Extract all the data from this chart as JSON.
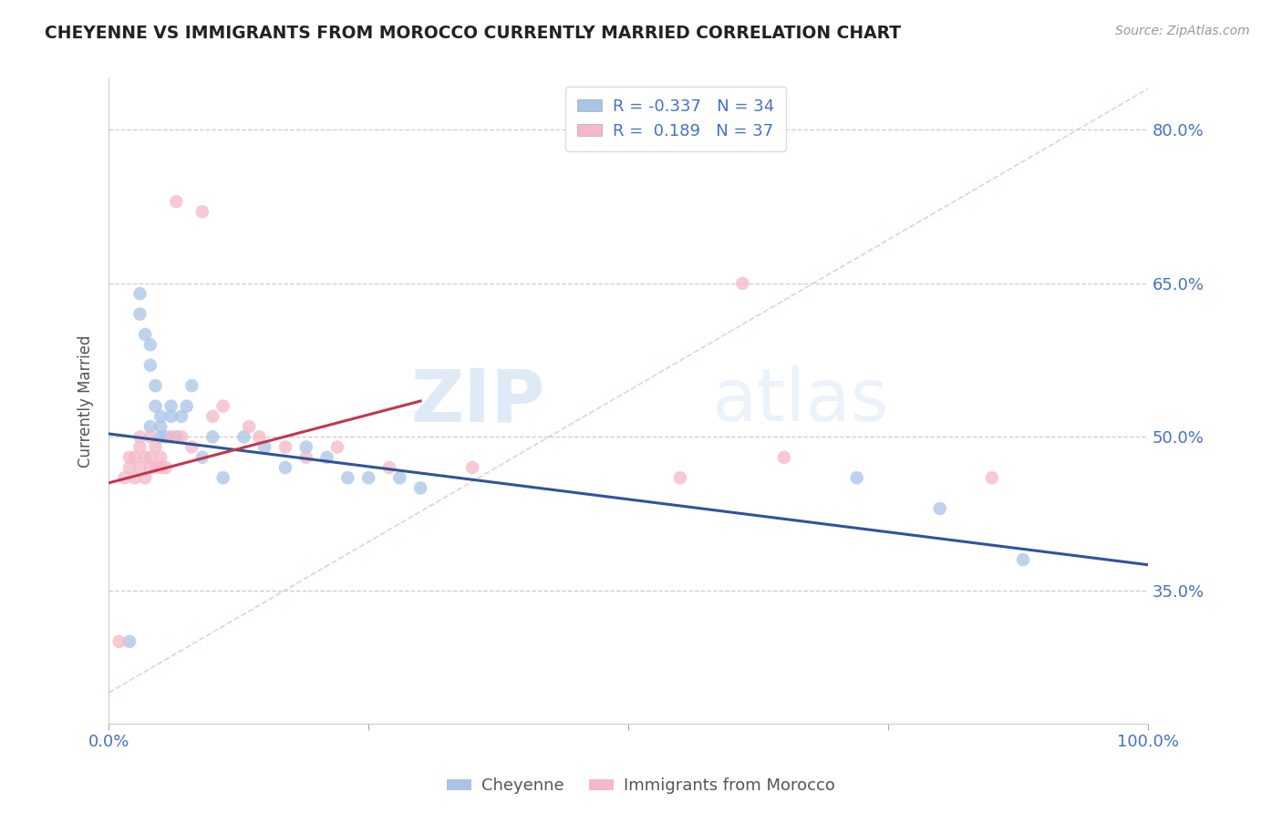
{
  "title": "CHEYENNE VS IMMIGRANTS FROM MOROCCO CURRENTLY MARRIED CORRELATION CHART",
  "source_text": "Source: ZipAtlas.com",
  "ylabel": "Currently Married",
  "y_tick_values": [
    0.8,
    0.65,
    0.5,
    0.35
  ],
  "xlim": [
    0.0,
    1.0
  ],
  "ylim": [
    0.22,
    0.85
  ],
  "legend_blue_label": "R = -0.337   N = 34",
  "legend_pink_label": "R =  0.189   N = 37",
  "blue_color": "#a8c4e8",
  "pink_color": "#f5b8c8",
  "blue_line_color": "#2f5597",
  "pink_line_color": "#c0384e",
  "watermark_zip": "ZIP",
  "watermark_atlas": "atlas",
  "cheyenne_x": [
    0.02,
    0.03,
    0.03,
    0.035,
    0.04,
    0.04,
    0.04,
    0.045,
    0.045,
    0.05,
    0.05,
    0.05,
    0.055,
    0.06,
    0.06,
    0.065,
    0.07,
    0.075,
    0.08,
    0.09,
    0.1,
    0.11,
    0.13,
    0.15,
    0.17,
    0.19,
    0.21,
    0.23,
    0.25,
    0.28,
    0.3,
    0.72,
    0.8,
    0.88
  ],
  "cheyenne_y": [
    0.3,
    0.62,
    0.64,
    0.6,
    0.57,
    0.59,
    0.51,
    0.53,
    0.55,
    0.5,
    0.51,
    0.52,
    0.5,
    0.52,
    0.53,
    0.5,
    0.52,
    0.53,
    0.55,
    0.48,
    0.5,
    0.46,
    0.5,
    0.49,
    0.47,
    0.49,
    0.48,
    0.46,
    0.46,
    0.46,
    0.45,
    0.46,
    0.43,
    0.38
  ],
  "morocco_x": [
    0.01,
    0.015,
    0.02,
    0.02,
    0.025,
    0.025,
    0.03,
    0.03,
    0.03,
    0.035,
    0.035,
    0.04,
    0.04,
    0.04,
    0.045,
    0.045,
    0.05,
    0.05,
    0.055,
    0.06,
    0.065,
    0.07,
    0.08,
    0.09,
    0.1,
    0.11,
    0.135,
    0.145,
    0.17,
    0.19,
    0.22,
    0.27,
    0.35,
    0.55,
    0.61,
    0.65,
    0.85
  ],
  "morocco_y": [
    0.3,
    0.46,
    0.47,
    0.48,
    0.46,
    0.48,
    0.47,
    0.49,
    0.5,
    0.46,
    0.48,
    0.47,
    0.48,
    0.5,
    0.47,
    0.49,
    0.47,
    0.48,
    0.47,
    0.5,
    0.73,
    0.5,
    0.49,
    0.72,
    0.52,
    0.53,
    0.51,
    0.5,
    0.49,
    0.48,
    0.49,
    0.47,
    0.47,
    0.46,
    0.65,
    0.48,
    0.46
  ],
  "blue_trend_x": [
    0.0,
    1.0
  ],
  "blue_trend_y": [
    0.503,
    0.375
  ],
  "pink_trend_x": [
    0.0,
    0.3
  ],
  "pink_trend_y": [
    0.455,
    0.535
  ],
  "ref_line_x": [
    0.0,
    1.0
  ],
  "ref_line_y": [
    0.25,
    0.84
  ]
}
